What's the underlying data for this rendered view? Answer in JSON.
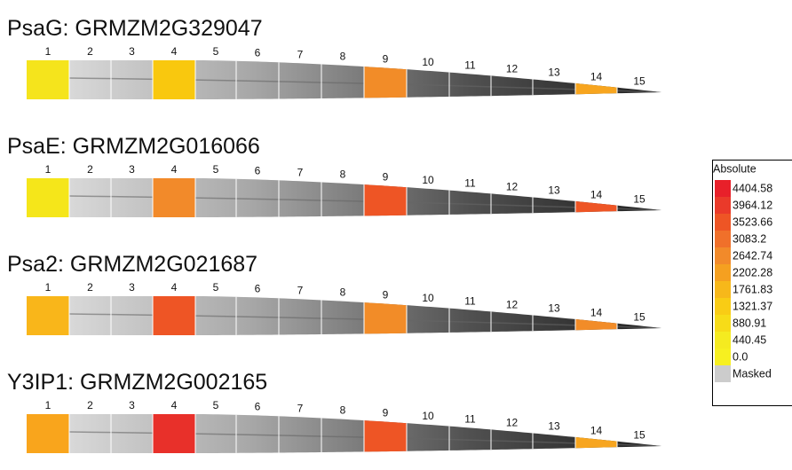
{
  "panels": [
    {
      "title": "PsaG: GRMZM2G329047",
      "segments": [
        {
          "label": "1",
          "color": "#f5e41c"
        },
        {
          "label": "2",
          "color": null
        },
        {
          "label": "3",
          "color": null
        },
        {
          "label": "4",
          "color": "#f9c80e"
        },
        {
          "label": "5",
          "color": null
        },
        {
          "label": "6",
          "color": null
        },
        {
          "label": "7",
          "color": null
        },
        {
          "label": "8",
          "color": null
        },
        {
          "label": "9",
          "color": "#f28c28"
        },
        {
          "label": "10",
          "color": null
        },
        {
          "label": "11",
          "color": null
        },
        {
          "label": "12",
          "color": null
        },
        {
          "label": "13",
          "color": null
        },
        {
          "label": "14",
          "color": "#f7a51f"
        },
        {
          "label": "15",
          "color": null
        }
      ]
    },
    {
      "title": "PsaE: GRMZM2G016066",
      "segments": [
        {
          "label": "1",
          "color": "#f5e61a"
        },
        {
          "label": "2",
          "color": null
        },
        {
          "label": "3",
          "color": null
        },
        {
          "label": "4",
          "color": "#f28a2a"
        },
        {
          "label": "5",
          "color": null
        },
        {
          "label": "6",
          "color": null
        },
        {
          "label": "7",
          "color": null
        },
        {
          "label": "8",
          "color": null
        },
        {
          "label": "9",
          "color": "#ee5525"
        },
        {
          "label": "10",
          "color": null
        },
        {
          "label": "11",
          "color": null
        },
        {
          "label": "12",
          "color": null
        },
        {
          "label": "13",
          "color": null
        },
        {
          "label": "14",
          "color": "#ee5525"
        },
        {
          "label": "15",
          "color": null
        }
      ]
    },
    {
      "title": "Psa2: GRMZM2G021687",
      "segments": [
        {
          "label": "1",
          "color": "#f9b61a"
        },
        {
          "label": "2",
          "color": null
        },
        {
          "label": "3",
          "color": null
        },
        {
          "label": "4",
          "color": "#ee5525"
        },
        {
          "label": "5",
          "color": null
        },
        {
          "label": "6",
          "color": null
        },
        {
          "label": "7",
          "color": null
        },
        {
          "label": "8",
          "color": null
        },
        {
          "label": "9",
          "color": "#f28c28"
        },
        {
          "label": "10",
          "color": null
        },
        {
          "label": "11",
          "color": null
        },
        {
          "label": "12",
          "color": null
        },
        {
          "label": "13",
          "color": null
        },
        {
          "label": "14",
          "color": "#f28c28"
        },
        {
          "label": "15",
          "color": null
        }
      ]
    },
    {
      "title": "Y3IP1: GRMZM2G002165",
      "segments": [
        {
          "label": "1",
          "color": "#f9a51c"
        },
        {
          "label": "2",
          "color": null
        },
        {
          "label": "3",
          "color": null
        },
        {
          "label": "4",
          "color": "#e8302a"
        },
        {
          "label": "5",
          "color": null
        },
        {
          "label": "6",
          "color": null
        },
        {
          "label": "7",
          "color": null
        },
        {
          "label": "8",
          "color": null
        },
        {
          "label": "9",
          "color": "#ee5525"
        },
        {
          "label": "10",
          "color": null
        },
        {
          "label": "11",
          "color": null
        },
        {
          "label": "12",
          "color": null
        },
        {
          "label": "13",
          "color": null
        },
        {
          "label": "14",
          "color": "#f7a51f"
        },
        {
          "label": "15",
          "color": null
        }
      ]
    }
  ],
  "legend": {
    "title": "Absolute",
    "items": [
      {
        "label": "4404.58",
        "color": "#e8202a"
      },
      {
        "label": "3964.12",
        "color": "#ea3a2a"
      },
      {
        "label": "3523.66",
        "color": "#ee5525"
      },
      {
        "label": "3083.2",
        "color": "#f0702a"
      },
      {
        "label": "2642.74",
        "color": "#f28a2a"
      },
      {
        "label": "2202.28",
        "color": "#f5a020"
      },
      {
        "label": "1761.83",
        "color": "#f7b81a"
      },
      {
        "label": "1321.37",
        "color": "#f9cc15"
      },
      {
        "label": "880.91",
        "color": "#f7dc18"
      },
      {
        "label": "440.45",
        "color": "#f5eb20"
      },
      {
        "label": "0.0",
        "color": "#f7f020"
      },
      {
        "label": "Masked",
        "color": "#cccccc"
      }
    ]
  }
}
